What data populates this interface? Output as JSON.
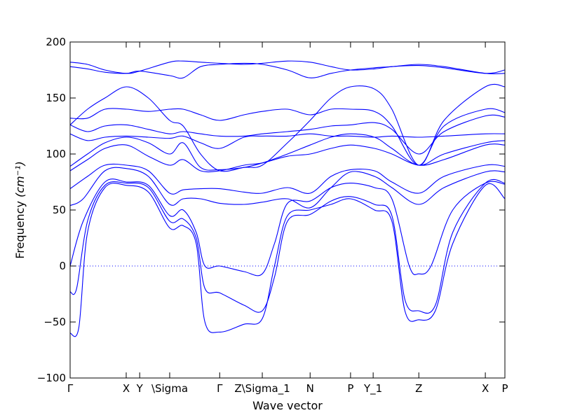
{
  "chart_data": {
    "type": "line",
    "xlabel": "Wave vector",
    "ylabel": "Frequency",
    "ylabel_unit": "(cm⁻¹)",
    "ylim": [
      -100,
      200
    ],
    "xlim": [
      0,
      1
    ],
    "yticks": [
      -100,
      -50,
      0,
      50,
      100,
      150,
      200
    ],
    "line_color": "#0000ff",
    "zero_line": {
      "y": 0,
      "style": "dotted"
    },
    "path_ticks": [
      {
        "label": "Γ",
        "x": 0.0
      },
      {
        "label": "X",
        "x": 0.129
      },
      {
        "label": "Y",
        "x": 0.16
      },
      {
        "label": "\\Sigma",
        "x": 0.229
      },
      {
        "label": "Γ",
        "x": 0.344
      },
      {
        "label": "Z\\Sigma_1",
        "x": 0.442
      },
      {
        "label": "N",
        "x": 0.552
      },
      {
        "label": "P",
        "x": 0.645
      },
      {
        "label": "Y_1",
        "x": 0.697
      },
      {
        "label": "Z",
        "x": 0.802
      },
      {
        "label": "X",
        "x": 0.955
      },
      {
        "label": "P",
        "x": 1.0
      }
    ],
    "series": [
      {
        "values": [
          [
            0.0,
            -60
          ],
          [
            0.02,
            -55
          ],
          [
            0.04,
            30
          ],
          [
            0.08,
            70
          ],
          [
            0.13,
            72
          ],
          [
            0.18,
            66
          ],
          [
            0.229,
            34
          ],
          [
            0.26,
            36
          ],
          [
            0.29,
            20
          ],
          [
            0.31,
            -50
          ],
          [
            0.344,
            -59
          ],
          [
            0.4,
            -52
          ],
          [
            0.442,
            -47
          ],
          [
            0.47,
            0
          ],
          [
            0.5,
            45
          ],
          [
            0.552,
            50
          ],
          [
            0.6,
            55
          ],
          [
            0.645,
            60
          ],
          [
            0.7,
            50
          ],
          [
            0.74,
            40
          ],
          [
            0.77,
            -40
          ],
          [
            0.802,
            -48
          ],
          [
            0.84,
            -40
          ],
          [
            0.88,
            20
          ],
          [
            0.955,
            72
          ],
          [
            1.0,
            60
          ]
        ]
      },
      {
        "values": [
          [
            0.0,
            -23
          ],
          [
            0.015,
            -20
          ],
          [
            0.04,
            40
          ],
          [
            0.08,
            72
          ],
          [
            0.13,
            74
          ],
          [
            0.18,
            70
          ],
          [
            0.229,
            40
          ],
          [
            0.26,
            42
          ],
          [
            0.29,
            25
          ],
          [
            0.31,
            -20
          ],
          [
            0.344,
            -24
          ],
          [
            0.4,
            -35
          ],
          [
            0.442,
            -40
          ],
          [
            0.47,
            -10
          ],
          [
            0.5,
            40
          ],
          [
            0.552,
            46
          ],
          [
            0.6,
            58
          ],
          [
            0.645,
            62
          ],
          [
            0.7,
            55
          ],
          [
            0.74,
            45
          ],
          [
            0.77,
            -30
          ],
          [
            0.802,
            -40
          ],
          [
            0.84,
            -35
          ],
          [
            0.88,
            30
          ],
          [
            0.955,
            74
          ],
          [
            1.0,
            74
          ]
        ]
      },
      {
        "values": [
          [
            0.0,
            0
          ],
          [
            0.03,
            40
          ],
          [
            0.08,
            75
          ],
          [
            0.13,
            75
          ],
          [
            0.18,
            72
          ],
          [
            0.229,
            45
          ],
          [
            0.26,
            50
          ],
          [
            0.29,
            30
          ],
          [
            0.31,
            0
          ],
          [
            0.344,
            0
          ],
          [
            0.4,
            -5
          ],
          [
            0.442,
            -7
          ],
          [
            0.47,
            20
          ],
          [
            0.5,
            56
          ],
          [
            0.552,
            58
          ],
          [
            0.6,
            70
          ],
          [
            0.645,
            74
          ],
          [
            0.7,
            70
          ],
          [
            0.74,
            60
          ],
          [
            0.78,
            0
          ],
          [
            0.802,
            -7
          ],
          [
            0.83,
            0
          ],
          [
            0.88,
            50
          ],
          [
            0.955,
            74
          ],
          [
            1.0,
            73
          ]
        ]
      },
      {
        "values": [
          [
            0.0,
            54
          ],
          [
            0.03,
            60
          ],
          [
            0.08,
            85
          ],
          [
            0.13,
            87
          ],
          [
            0.18,
            80
          ],
          [
            0.229,
            55
          ],
          [
            0.26,
            60
          ],
          [
            0.3,
            60
          ],
          [
            0.344,
            56
          ],
          [
            0.4,
            55
          ],
          [
            0.442,
            57
          ],
          [
            0.5,
            60
          ],
          [
            0.552,
            52
          ],
          [
            0.6,
            70
          ],
          [
            0.645,
            84
          ],
          [
            0.7,
            80
          ],
          [
            0.74,
            70
          ],
          [
            0.802,
            55
          ],
          [
            0.86,
            70
          ],
          [
            0.955,
            84
          ],
          [
            1.0,
            84
          ]
        ]
      },
      {
        "values": [
          [
            0.0,
            69
          ],
          [
            0.04,
            80
          ],
          [
            0.08,
            90
          ],
          [
            0.13,
            90
          ],
          [
            0.18,
            85
          ],
          [
            0.229,
            65
          ],
          [
            0.26,
            68
          ],
          [
            0.3,
            69
          ],
          [
            0.344,
            69
          ],
          [
            0.4,
            66
          ],
          [
            0.442,
            65
          ],
          [
            0.5,
            70
          ],
          [
            0.552,
            65
          ],
          [
            0.6,
            80
          ],
          [
            0.645,
            86
          ],
          [
            0.7,
            85
          ],
          [
            0.74,
            75
          ],
          [
            0.802,
            65
          ],
          [
            0.86,
            80
          ],
          [
            0.955,
            90
          ],
          [
            1.0,
            89
          ]
        ]
      },
      {
        "values": [
          [
            0.0,
            85
          ],
          [
            0.04,
            95
          ],
          [
            0.08,
            105
          ],
          [
            0.13,
            108
          ],
          [
            0.18,
            98
          ],
          [
            0.229,
            90
          ],
          [
            0.26,
            95
          ],
          [
            0.3,
            85
          ],
          [
            0.344,
            85
          ],
          [
            0.4,
            90
          ],
          [
            0.442,
            92
          ],
          [
            0.5,
            98
          ],
          [
            0.552,
            100
          ],
          [
            0.6,
            105
          ],
          [
            0.645,
            108
          ],
          [
            0.7,
            105
          ],
          [
            0.74,
            100
          ],
          [
            0.802,
            90
          ],
          [
            0.86,
            95
          ],
          [
            0.955,
            108
          ],
          [
            1.0,
            108
          ]
        ]
      },
      {
        "values": [
          [
            0.0,
            89
          ],
          [
            0.04,
            100
          ],
          [
            0.08,
            110
          ],
          [
            0.13,
            115
          ],
          [
            0.18,
            110
          ],
          [
            0.229,
            100
          ],
          [
            0.26,
            110
          ],
          [
            0.3,
            88
          ],
          [
            0.344,
            86
          ],
          [
            0.4,
            88
          ],
          [
            0.442,
            92
          ],
          [
            0.5,
            100
          ],
          [
            0.552,
            108
          ],
          [
            0.6,
            115
          ],
          [
            0.645,
            118
          ],
          [
            0.7,
            115
          ],
          [
            0.74,
            105
          ],
          [
            0.802,
            90
          ],
          [
            0.86,
            100
          ],
          [
            0.955,
            110
          ],
          [
            1.0,
            112
          ]
        ]
      },
      {
        "values": [
          [
            0.0,
            118
          ],
          [
            0.04,
            112
          ],
          [
            0.08,
            115
          ],
          [
            0.13,
            116
          ],
          [
            0.18,
            115
          ],
          [
            0.229,
            114
          ],
          [
            0.26,
            116
          ],
          [
            0.3,
            110
          ],
          [
            0.344,
            105
          ],
          [
            0.4,
            115
          ],
          [
            0.442,
            116
          ],
          [
            0.5,
            116
          ],
          [
            0.552,
            118
          ],
          [
            0.6,
            116
          ],
          [
            0.645,
            116
          ],
          [
            0.7,
            115
          ],
          [
            0.74,
            116
          ],
          [
            0.802,
            115
          ],
          [
            0.86,
            116
          ],
          [
            0.955,
            118
          ],
          [
            1.0,
            118
          ]
        ]
      },
      {
        "values": [
          [
            0.0,
            126
          ],
          [
            0.04,
            120
          ],
          [
            0.08,
            125
          ],
          [
            0.13,
            126
          ],
          [
            0.18,
            122
          ],
          [
            0.229,
            118
          ],
          [
            0.26,
            120
          ],
          [
            0.3,
            118
          ],
          [
            0.344,
            116
          ],
          [
            0.4,
            116
          ],
          [
            0.442,
            118
          ],
          [
            0.5,
            120
          ],
          [
            0.552,
            122
          ],
          [
            0.6,
            125
          ],
          [
            0.645,
            126
          ],
          [
            0.7,
            128
          ],
          [
            0.74,
            122
          ],
          [
            0.802,
            100
          ],
          [
            0.86,
            120
          ],
          [
            0.955,
            134
          ],
          [
            1.0,
            133
          ]
        ]
      },
      {
        "values": [
          [
            0.0,
            132
          ],
          [
            0.04,
            132
          ],
          [
            0.08,
            140
          ],
          [
            0.13,
            140
          ],
          [
            0.18,
            138
          ],
          [
            0.229,
            140
          ],
          [
            0.26,
            140
          ],
          [
            0.3,
            135
          ],
          [
            0.344,
            130
          ],
          [
            0.4,
            135
          ],
          [
            0.442,
            138
          ],
          [
            0.5,
            140
          ],
          [
            0.552,
            135
          ],
          [
            0.6,
            140
          ],
          [
            0.645,
            140
          ],
          [
            0.7,
            138
          ],
          [
            0.74,
            125
          ],
          [
            0.802,
            90
          ],
          [
            0.86,
            125
          ],
          [
            0.955,
            140
          ],
          [
            1.0,
            137
          ]
        ]
      },
      {
        "values": [
          [
            0.0,
            126
          ],
          [
            0.04,
            140
          ],
          [
            0.08,
            150
          ],
          [
            0.13,
            160
          ],
          [
            0.18,
            150
          ],
          [
            0.229,
            130
          ],
          [
            0.26,
            125
          ],
          [
            0.3,
            100
          ],
          [
            0.344,
            85
          ],
          [
            0.4,
            88
          ],
          [
            0.442,
            90
          ],
          [
            0.5,
            110
          ],
          [
            0.552,
            130
          ],
          [
            0.6,
            150
          ],
          [
            0.645,
            160
          ],
          [
            0.7,
            158
          ],
          [
            0.74,
            140
          ],
          [
            0.802,
            90
          ],
          [
            0.86,
            130
          ],
          [
            0.955,
            160
          ],
          [
            1.0,
            160
          ]
        ]
      },
      {
        "values": [
          [
            0.0,
            178
          ],
          [
            0.04,
            176
          ],
          [
            0.08,
            173
          ],
          [
            0.13,
            172
          ],
          [
            0.16,
            174
          ],
          [
            0.229,
            170
          ],
          [
            0.26,
            168
          ],
          [
            0.3,
            178
          ],
          [
            0.344,
            180
          ],
          [
            0.4,
            181
          ],
          [
            0.442,
            180
          ],
          [
            0.5,
            175
          ],
          [
            0.552,
            168
          ],
          [
            0.6,
            172
          ],
          [
            0.645,
            175
          ],
          [
            0.7,
            177
          ],
          [
            0.74,
            178
          ],
          [
            0.802,
            180
          ],
          [
            0.86,
            178
          ],
          [
            0.955,
            172
          ],
          [
            1.0,
            172
          ]
        ]
      },
      {
        "values": [
          [
            0.0,
            182
          ],
          [
            0.04,
            180
          ],
          [
            0.08,
            175
          ],
          [
            0.13,
            172
          ],
          [
            0.16,
            174
          ],
          [
            0.229,
            182
          ],
          [
            0.26,
            183
          ],
          [
            0.3,
            182
          ],
          [
            0.344,
            181
          ],
          [
            0.4,
            180
          ],
          [
            0.442,
            181
          ],
          [
            0.5,
            183
          ],
          [
            0.552,
            182
          ],
          [
            0.6,
            178
          ],
          [
            0.645,
            175
          ],
          [
            0.7,
            176
          ],
          [
            0.74,
            178
          ],
          [
            0.802,
            179
          ],
          [
            0.86,
            177
          ],
          [
            0.955,
            172
          ],
          [
            1.0,
            175
          ]
        ]
      }
    ]
  }
}
